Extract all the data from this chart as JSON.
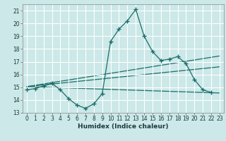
{
  "xlabel": "Humidex (Indice chaleur)",
  "xlim": [
    -0.5,
    23.5
  ],
  "ylim": [
    13,
    21.5
  ],
  "xticks": [
    0,
    1,
    2,
    3,
    4,
    5,
    6,
    7,
    8,
    9,
    10,
    11,
    12,
    13,
    14,
    15,
    16,
    17,
    18,
    19,
    20,
    21,
    22,
    23
  ],
  "yticks": [
    13,
    14,
    15,
    16,
    17,
    18,
    19,
    20,
    21
  ],
  "bg_color": "#cce8e8",
  "line_color": "#1a6e6a",
  "grid_color": "#ffffff",
  "main_curve": {
    "x": [
      0,
      1,
      2,
      3,
      4,
      5,
      6,
      7,
      8,
      9,
      10,
      11,
      12,
      13,
      14,
      15,
      16,
      17,
      18,
      19,
      20,
      21,
      22,
      23
    ],
    "y": [
      14.8,
      14.9,
      15.1,
      15.3,
      14.8,
      14.1,
      13.6,
      13.35,
      13.7,
      14.5,
      18.6,
      19.55,
      20.2,
      21.1,
      19.0,
      17.8,
      17.1,
      17.2,
      17.4,
      16.85,
      15.6,
      14.8,
      14.6,
      null
    ]
  },
  "trend_lines": [
    {
      "x": [
        0,
        23
      ],
      "y": [
        15.05,
        17.45
      ]
    },
    {
      "x": [
        0,
        23
      ],
      "y": [
        15.05,
        16.6
      ]
    },
    {
      "x": [
        0,
        23
      ],
      "y": [
        15.05,
        14.55
      ]
    }
  ]
}
